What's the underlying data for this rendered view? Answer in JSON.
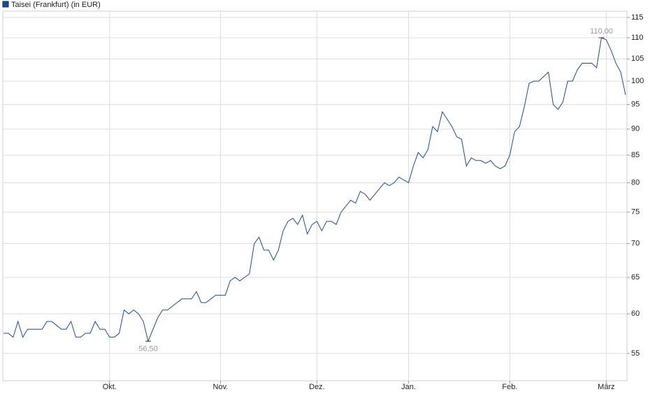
{
  "chart_data": {
    "type": "line",
    "log_scale": true,
    "grid": true,
    "legend": "top-left",
    "categories": [
      null,
      null,
      null,
      null,
      null,
      null,
      null,
      null,
      null,
      null,
      null,
      null,
      null,
      null,
      null,
      null,
      null,
      null,
      null,
      null,
      null,
      null,
      "Okt.",
      null,
      null,
      null,
      null,
      null,
      null,
      null,
      null,
      null,
      null,
      null,
      null,
      null,
      null,
      null,
      null,
      null,
      null,
      null,
      null,
      null,
      null,
      "Nov.",
      null,
      null,
      null,
      null,
      null,
      null,
      null,
      null,
      null,
      null,
      null,
      null,
      null,
      null,
      null,
      null,
      null,
      null,
      null,
      "Dez.",
      null,
      null,
      null,
      null,
      null,
      null,
      null,
      null,
      null,
      null,
      null,
      null,
      null,
      null,
      null,
      null,
      null,
      null,
      "Jan.",
      null,
      null,
      null,
      null,
      null,
      null,
      null,
      null,
      null,
      null,
      null,
      null,
      null,
      null,
      null,
      null,
      null,
      null,
      null,
      null,
      "Feb.",
      null,
      null,
      null,
      null,
      null,
      null,
      null,
      null,
      null,
      null,
      null,
      null,
      null,
      null,
      null,
      null,
      null,
      null,
      null,
      "März",
      null,
      null,
      null,
      null
    ],
    "series": [
      {
        "name": "Taisei (Frankfurt) (in EUR)",
        "color": "#1a4c94",
        "values": [
          57.5,
          57.5,
          57,
          59,
          57,
          58,
          58,
          58,
          58,
          59,
          59,
          58.5,
          58,
          58,
          59,
          57,
          57,
          57.5,
          57.5,
          59,
          58,
          58,
          57,
          57,
          57.5,
          60.5,
          60,
          60.5,
          60,
          59,
          56.5,
          58,
          59.5,
          60.5,
          60.5,
          61,
          61.5,
          62,
          62,
          62,
          63,
          61.5,
          61.5,
          62,
          62.5,
          62.5,
          62.5,
          64.5,
          65,
          64.5,
          65,
          65.5,
          70,
          71,
          69,
          69,
          67.5,
          69,
          72,
          73.5,
          74,
          73,
          74.5,
          71.5,
          73,
          73.5,
          72,
          73.5,
          73.5,
          73,
          75,
          76,
          77,
          76.5,
          78.5,
          78,
          77,
          78,
          79,
          80,
          79.5,
          80,
          81,
          80.5,
          80,
          83,
          85.5,
          84.5,
          86,
          90.5,
          89.5,
          93.5,
          92,
          90.5,
          88.5,
          88,
          83,
          84.5,
          84,
          84,
          83.5,
          84,
          83,
          82.5,
          83,
          85,
          89.5,
          90.5,
          94.5,
          99.5,
          100,
          100,
          101,
          102,
          95,
          94,
          95.5,
          100,
          100,
          102.5,
          104,
          104,
          104,
          103,
          110,
          109.5,
          107,
          104,
          102,
          97
        ],
        "value_labels": [
          null,
          null,
          null,
          null,
          null,
          null,
          null,
          null,
          null,
          null,
          null,
          null,
          null,
          null,
          null,
          null,
          null,
          null,
          null,
          null,
          null,
          null,
          null,
          null,
          null,
          null,
          null,
          null,
          null,
          null,
          "56,50",
          null,
          null,
          null,
          null,
          null,
          null,
          null,
          null,
          null,
          null,
          null,
          null,
          null,
          null,
          null,
          null,
          null,
          null,
          null,
          null,
          null,
          null,
          null,
          null,
          null,
          null,
          null,
          null,
          null,
          null,
          null,
          null,
          null,
          null,
          null,
          null,
          null,
          null,
          null,
          null,
          null,
          null,
          null,
          null,
          null,
          null,
          null,
          null,
          null,
          null,
          null,
          null,
          null,
          null,
          null,
          null,
          null,
          null,
          null,
          null,
          null,
          null,
          null,
          null,
          null,
          null,
          null,
          null,
          null,
          null,
          null,
          null,
          null,
          null,
          null,
          null,
          null,
          null,
          null,
          null,
          null,
          null,
          null,
          null,
          null,
          null,
          null,
          null,
          null,
          null,
          null,
          null,
          null,
          "110,00",
          null,
          null,
          null,
          null,
          null
        ]
      }
    ],
    "ylim": [
      51.8,
      116.6
    ],
    "yticks": [
      55,
      60,
      65,
      70,
      75,
      80,
      85,
      90,
      95,
      100,
      105,
      110,
      115
    ]
  }
}
